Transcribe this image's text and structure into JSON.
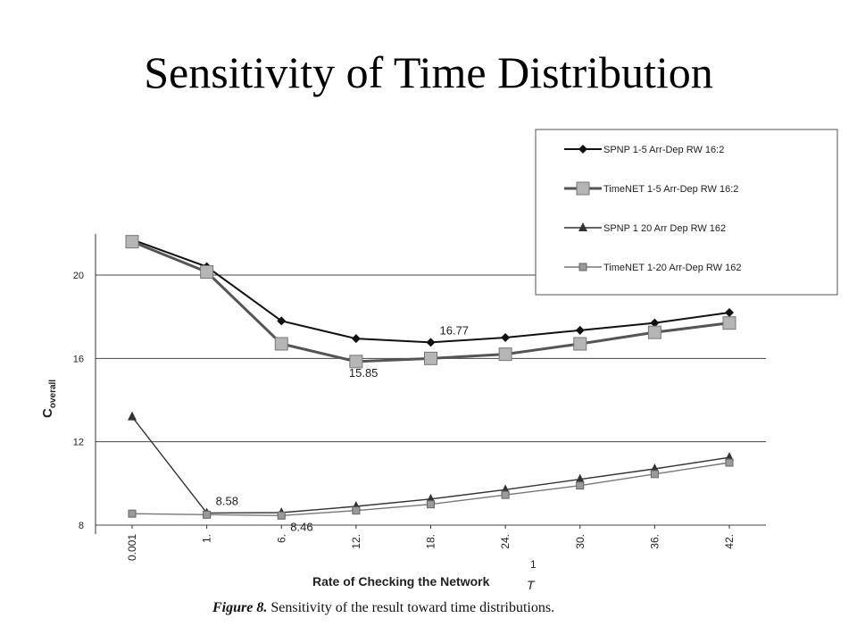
{
  "slide": {
    "title": "Sensitivity of Time Distribution"
  },
  "caption": {
    "figure_label": "Figure 8.",
    "text": "Sensitivity of the result toward time distributions."
  },
  "chart_data": {
    "type": "line",
    "title": "",
    "xlabel": "Rate of Checking the Network",
    "xlabel_fraction_numerator": "1",
    "xlabel_fraction_denominator": "T",
    "ylabel": "C",
    "ylabel_subscript": "overall",
    "categories": [
      "0.001",
      "1.",
      "6.",
      "12.",
      "18.",
      "24.",
      "30.",
      "36.",
      "42."
    ],
    "ylim": [
      8,
      21.5
    ],
    "yticks": [
      "8",
      "12",
      "16",
      "20"
    ],
    "grid": "horizontal",
    "legend_position": "top-right",
    "series": [
      {
        "name": "SPNP 1-5 Arr-Dep RW 16:2",
        "marker": "diamond",
        "color": "#111111",
        "values": [
          21.7,
          20.4,
          17.8,
          16.95,
          16.77,
          17.0,
          17.35,
          17.7,
          18.2
        ]
      },
      {
        "name": "TimeNET 1-5 Arr-Dep RW 16:2",
        "marker": "square",
        "color": "#555555",
        "values": [
          21.6,
          20.15,
          16.7,
          15.85,
          16.0,
          16.2,
          16.7,
          17.25,
          17.7
        ]
      },
      {
        "name": "SPNP 1 20 Arr Dep RW 162",
        "marker": "triangle",
        "color": "#333333",
        "values": [
          13.2,
          8.58,
          8.6,
          8.9,
          9.25,
          9.7,
          10.2,
          10.7,
          11.25
        ]
      },
      {
        "name": "TimeNET 1-20 Arr-Dep RW 162",
        "marker": "square-small",
        "color": "#777777",
        "values": [
          8.55,
          8.5,
          8.46,
          8.7,
          9.0,
          9.45,
          9.9,
          10.45,
          11.0
        ]
      }
    ],
    "annotations": [
      {
        "text": "16.77",
        "series": 0,
        "index": 4,
        "position": "above"
      },
      {
        "text": "15.85",
        "series": 1,
        "index": 3,
        "position": "below"
      },
      {
        "text": "8.58",
        "series": 2,
        "index": 1,
        "position": "above"
      },
      {
        "text": "8.46",
        "series": 3,
        "index": 2,
        "position": "below"
      }
    ]
  }
}
